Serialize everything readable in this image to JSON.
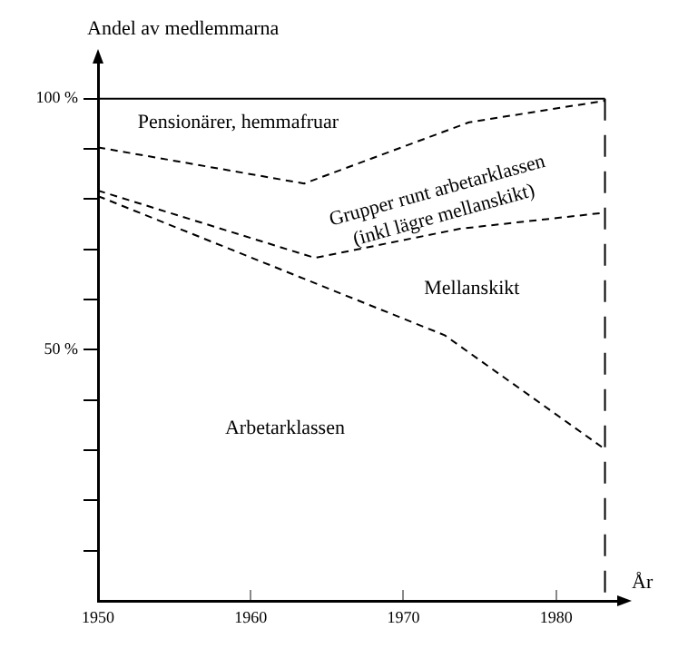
{
  "chart_data": {
    "type": "line",
    "xlabel": "År",
    "ylabel": "Andel av medlemmarna",
    "xlim": [
      1950,
      1984
    ],
    "xticks": [
      1950,
      1960,
      1970,
      1980
    ],
    "ylim": [
      0,
      107
    ],
    "yticks": [
      {
        "value": 10,
        "label": null
      },
      {
        "value": 20,
        "label": null
      },
      {
        "value": 30,
        "label": null
      },
      {
        "value": 40,
        "label": null
      },
      {
        "value": 50,
        "label": "50 %"
      },
      {
        "value": 60,
        "label": null
      },
      {
        "value": 70,
        "label": null
      },
      {
        "value": 80,
        "label": null
      },
      {
        "value": 90,
        "label": null
      },
      {
        "value": 100,
        "label": "100 %"
      }
    ],
    "series": [
      {
        "color": "#000000",
        "x": [
          1950,
          1963.5,
          1974.3,
          1983.2
        ],
        "values": [
          90.3,
          83.1,
          95.3,
          99.6
        ]
      },
      {
        "color": "#000000",
        "x": [
          1950,
          1964.2,
          1973.7,
          1983.2
        ],
        "values": [
          81.7,
          68.3,
          74.1,
          77.3
        ]
      },
      {
        "color": "#000000",
        "x": [
          1950,
          1972.7,
          1983.2
        ],
        "values": [
          80.6,
          52.9,
          30.2
        ]
      }
    ],
    "ref_lines": [
      {
        "axis": "y",
        "value": 100,
        "label": null,
        "line_style": "solid",
        "color": "#000000"
      },
      {
        "axis": "x",
        "value": 1983.2,
        "label": null,
        "line_style": "dashed",
        "color": "#000000"
      }
    ],
    "annotations": [
      "Pensionärer, hemmafruar",
      "Grupper runt arbetarklassen\n(inkl lägre mellanskikt)",
      "Mellanskikt",
      "Arbetarklassen"
    ],
    "marker": "none",
    "line_style": "dashed",
    "legend": false,
    "grid": false
  }
}
